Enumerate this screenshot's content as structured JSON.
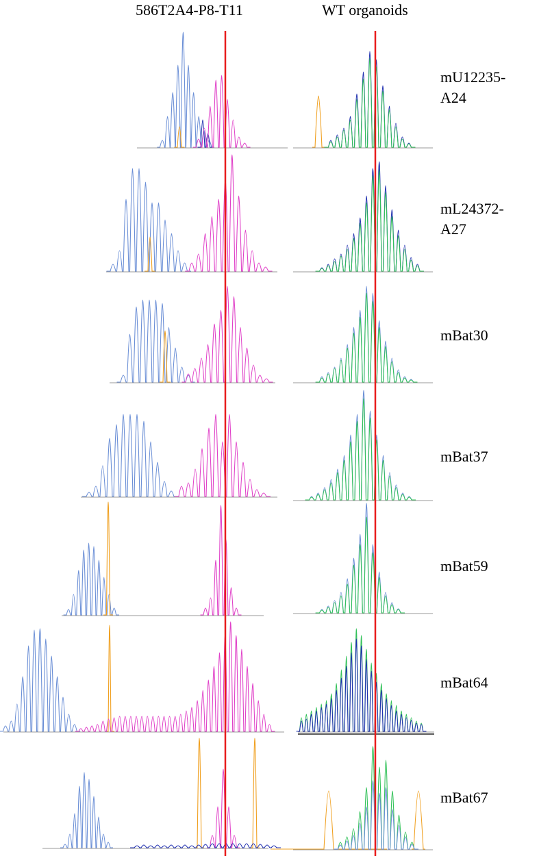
{
  "columns": {
    "left_title": "586T2A4-P8-T11",
    "right_title": "WT organoids"
  },
  "colors": {
    "blue": "#6b8fd6",
    "pink": "#e040c8",
    "orange": "#f0a020",
    "green": "#33c25a",
    "navy": "#2030b0",
    "red_line": "#e81c1c",
    "baseline": "#999999"
  },
  "markers": [
    {
      "label_line1": "mU12235-",
      "label_line2": "A24"
    },
    {
      "label_line1": "mL24372-",
      "label_line2": "A27"
    },
    {
      "label_line1": "mBat30",
      "label_line2": ""
    },
    {
      "label_line1": "mBat37",
      "label_line2": ""
    },
    {
      "label_line1": "mBat59",
      "label_line2": ""
    },
    {
      "label_line1": "mBat64",
      "label_line2": ""
    },
    {
      "label_line1": "mBat67",
      "label_line2": ""
    }
  ]
}
